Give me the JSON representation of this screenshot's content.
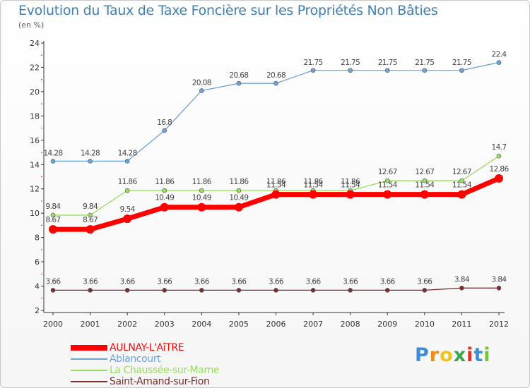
{
  "chart_data": {
    "type": "line",
    "title": "Evolution du Taux de Taxe Foncière sur les Propriétés Non Bâties",
    "subtitle": "(en %)",
    "categories": [
      "2000",
      "2001",
      "2002",
      "2003",
      "2004",
      "2005",
      "2006",
      "2007",
      "2008",
      "2009",
      "2010",
      "2011",
      "2012"
    ],
    "ylim": [
      2,
      24
    ],
    "yticks": [
      2,
      4,
      6,
      8,
      10,
      12,
      14,
      16,
      18,
      20,
      22,
      24
    ],
    "grid": false,
    "legend_position": "bottom-left",
    "series": [
      {
        "name": "AULNAY-L'AîTRE",
        "color": "#ff0000",
        "values": [
          8.67,
          8.67,
          9.54,
          10.49,
          10.49,
          10.49,
          11.54,
          11.54,
          11.54,
          11.54,
          11.54,
          11.54,
          12.86
        ],
        "labels": [
          "8.67",
          "8.67",
          "9.54",
          "10.49",
          "10.49",
          "10.49",
          "11.54",
          "11.54",
          "11.54",
          "11.54",
          "11.54",
          "11.54",
          "12.86"
        ]
      },
      {
        "name": "Ablancourt",
        "color": "#6fa3d6",
        "values": [
          14.28,
          14.28,
          14.28,
          16.8,
          20.08,
          20.68,
          20.68,
          21.75,
          21.75,
          21.75,
          21.75,
          21.75,
          22.4
        ],
        "labels": [
          "14.28",
          "14.28",
          "14.28",
          "16.8",
          "20.08",
          "20.68",
          "20.68",
          "21.75",
          "21.75",
          "21.75",
          "21.75",
          "21.75",
          "22.4"
        ]
      },
      {
        "name": "La Chaussée-sur-Marne",
        "color": "#9bdc62",
        "values": [
          9.84,
          9.84,
          11.86,
          11.86,
          11.86,
          11.86,
          11.86,
          11.86,
          11.86,
          12.67,
          12.67,
          12.67,
          14.7
        ],
        "labels": [
          "9.84",
          "9.84",
          "11.86",
          "11.86",
          "11.86",
          "11.86",
          "11.86",
          "11.86",
          "11.86",
          "12.67",
          "12.67",
          "12.67",
          "14.7"
        ]
      },
      {
        "name": "Saint-Amand-sur-Fion",
        "color": "#7a2f2f",
        "values": [
          3.66,
          3.66,
          3.66,
          3.66,
          3.66,
          3.66,
          3.66,
          3.66,
          3.66,
          3.66,
          3.66,
          3.84,
          3.84
        ],
        "labels": [
          "3.66",
          "3.66",
          "3.66",
          "3.66",
          "3.66",
          "3.66",
          "3.66",
          "3.66",
          "3.66",
          "3.66",
          "3.66",
          "3.84",
          "3.84"
        ]
      }
    ]
  },
  "logo": {
    "letters": [
      "P",
      "r",
      "o",
      "x",
      "i",
      "t",
      "i"
    ],
    "colors": [
      "#3a8fd6",
      "#f08a1c",
      "#f0c21c",
      "#3aa84a",
      "#e0302a",
      "#3a8fd6",
      "#7ac043"
    ]
  }
}
